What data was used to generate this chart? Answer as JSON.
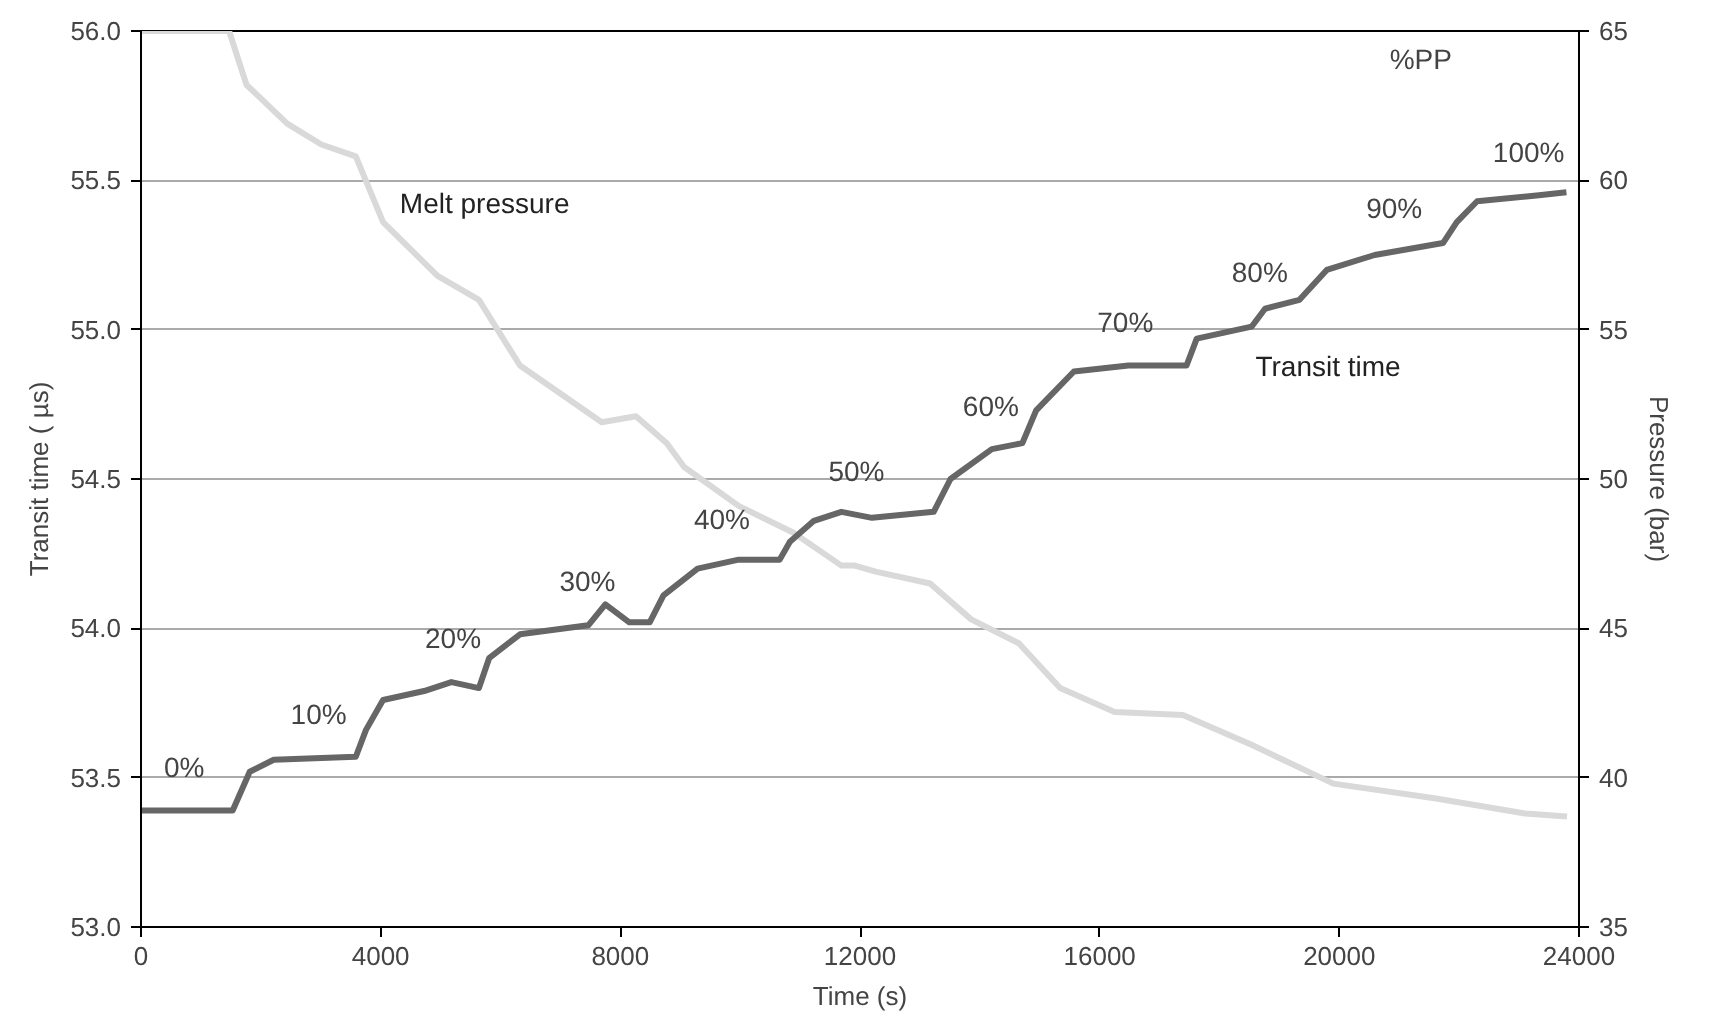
{
  "chart_data": {
    "type": "line",
    "xlabel": "Time (s)",
    "ylabel": "Transit time ( µs)",
    "y2label": "Pressure (bar)",
    "xlim": [
      0,
      24000
    ],
    "xticks": [
      0,
      4000,
      8000,
      12000,
      16000,
      20000,
      24000
    ],
    "ylim": [
      53,
      56
    ],
    "yticks": [
      {
        "value": 53,
        "label": "53.0"
      },
      {
        "value": 53.5,
        "label": "53.5"
      },
      {
        "value": 54,
        "label": "54.0"
      },
      {
        "value": 54.5,
        "label": "54.5"
      },
      {
        "value": 55,
        "label": "55.0"
      },
      {
        "value": 55.5,
        "label": "55.5"
      },
      {
        "value": 56,
        "label": "56.0"
      }
    ],
    "y2lim": [
      35,
      65
    ],
    "y2ticks": [
      35,
      40,
      45,
      50,
      55,
      60,
      65
    ],
    "grid": "y",
    "legend": false,
    "series": [
      {
        "name": "Melt pressure",
        "color": "#d9d9d9",
        "axis": "y2",
        "x": [
          0,
          1470,
          1760,
          2440,
          3010,
          3585,
          4040,
          4950,
          5640,
          6325,
          7690,
          8260,
          8775,
          9065,
          9975,
          10890,
          11690,
          11915,
          12260,
          13170,
          13855,
          14650,
          15340,
          16250,
          17390,
          18535,
          19900,
          21615,
          23100,
          23800
        ],
        "values": [
          65.0,
          65.0,
          63.2,
          61.9,
          61.2,
          60.8,
          58.6,
          56.8,
          56.0,
          53.8,
          51.9,
          52.1,
          51.2,
          50.4,
          49.1,
          48.2,
          47.1,
          47.1,
          46.9,
          46.5,
          45.3,
          44.5,
          43.0,
          42.2,
          42.1,
          41.1,
          39.8,
          39.3,
          38.8,
          38.7
        ]
      },
      {
        "name": "Transit time",
        "color": "#666666",
        "x": [
          0,
          1530,
          1815,
          2215,
          3585,
          3755,
          4040,
          4725,
          5180,
          5640,
          5810,
          6325,
          7465,
          7750,
          8150,
          8490,
          8720,
          9290,
          9975,
          10660,
          10830,
          11230,
          11690,
          12200,
          13230,
          13510,
          14200,
          14710,
          14940,
          15570,
          16480,
          17450,
          17620,
          18535,
          18760,
          19335,
          19790,
          20590,
          21730,
          21960,
          22300,
          23330,
          23790
        ],
        "values": [
          53.39,
          53.39,
          53.52,
          53.56,
          53.57,
          53.66,
          53.76,
          53.79,
          53.82,
          53.8,
          53.9,
          53.98,
          54.01,
          54.08,
          54.02,
          54.02,
          54.11,
          54.2,
          54.23,
          54.23,
          54.29,
          54.36,
          54.39,
          54.37,
          54.39,
          54.5,
          54.6,
          54.62,
          54.73,
          54.86,
          54.88,
          54.88,
          54.97,
          55.01,
          55.07,
          55.1,
          55.2,
          55.25,
          55.29,
          55.36,
          55.43,
          55.45,
          55.46
        ]
      }
    ],
    "annotations": [
      "%PP",
      "0%",
      "10%",
      "20%",
      "30%",
      "40%",
      "50%",
      "60%",
      "70%",
      "80%",
      "90%",
      "100%"
    ]
  }
}
